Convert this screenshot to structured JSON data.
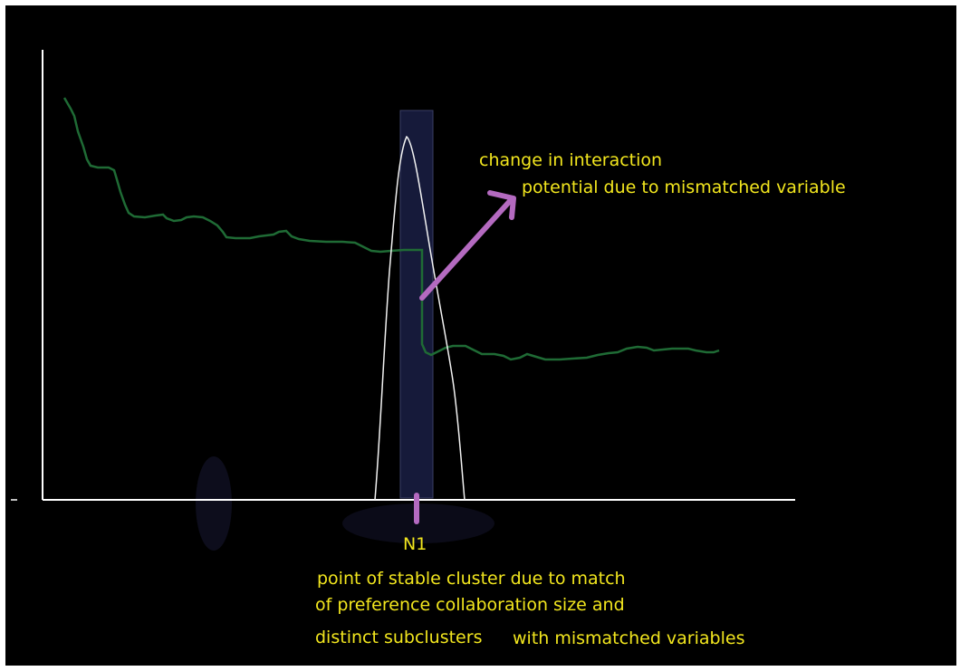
{
  "colors": {
    "background": "#000000",
    "border": "#ffffff",
    "axis": "#ffffff",
    "green_curve": "#1f6b35",
    "peak_curve": "#f2f2f2",
    "highlight_band": "#161a3a",
    "arrow": "#b46ac0",
    "text": "#f2e61e"
  },
  "annotations": {
    "interaction_line1": "change in interaction",
    "interaction_line2": "potential due to mismatched variable",
    "peak_label": "N1",
    "stable_line1": "point of stable cluster due to match",
    "stable_line2": "of preference collaboration size and",
    "stable_line3a": "distinct subclusters",
    "stable_line3b": "with mismatched variables"
  }
}
